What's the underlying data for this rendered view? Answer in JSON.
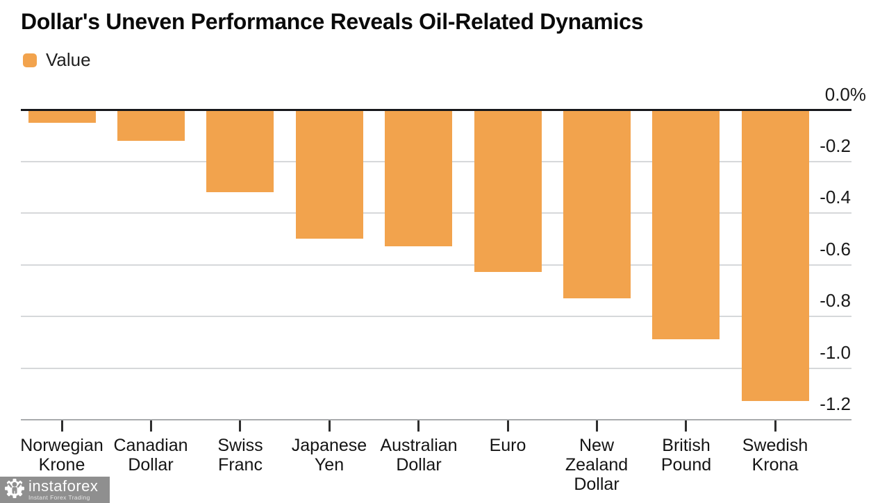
{
  "header": {
    "title": "Dollar's Uneven Performance Reveals Oil-Related Dynamics"
  },
  "legend": {
    "label": "Value",
    "swatch_color": "#f2a34d"
  },
  "chart_data": {
    "type": "bar",
    "title": "Dollar's Uneven Performance Reveals Oil-Related Dynamics",
    "categories": [
      "Norwegian Krone",
      "Canadian Dollar",
      "Swiss Franc",
      "Japanese Yen",
      "Australian Dollar",
      "Euro",
      "New Zealand Dollar",
      "British Pound",
      "Swedish Krona"
    ],
    "series": [
      {
        "name": "Value",
        "values": [
          -0.05,
          -0.12,
          -0.32,
          -0.5,
          -0.53,
          -0.63,
          -0.73,
          -0.89,
          -1.13
        ]
      }
    ],
    "xlabel": "",
    "ylabel": "",
    "unit": "%",
    "y_ticks": [
      "0.0%",
      "-0.2",
      "-0.4",
      "-0.6",
      "-0.8",
      "-1.0",
      "-1.2"
    ],
    "ylim": [
      -1.2,
      0
    ],
    "grid": true,
    "grid_color": "#d6d8da",
    "bar_color": "#f2a34d",
    "legend_position": "top-left"
  },
  "watermark": {
    "brand": "instaforex",
    "tagline": "Instant Forex Trading",
    "icon": "gear-person-icon",
    "bg_color": "#8f8f8f"
  }
}
